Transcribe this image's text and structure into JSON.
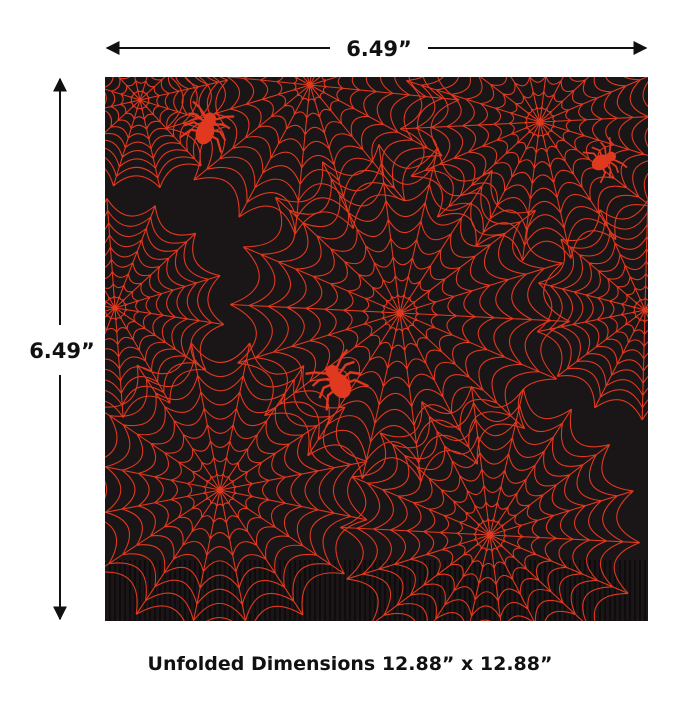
{
  "dimensions": {
    "width": "6.49”",
    "height": "6.49”",
    "unfolded": "Unfolded Dimensions 12.88” x 12.88”"
  }
}
